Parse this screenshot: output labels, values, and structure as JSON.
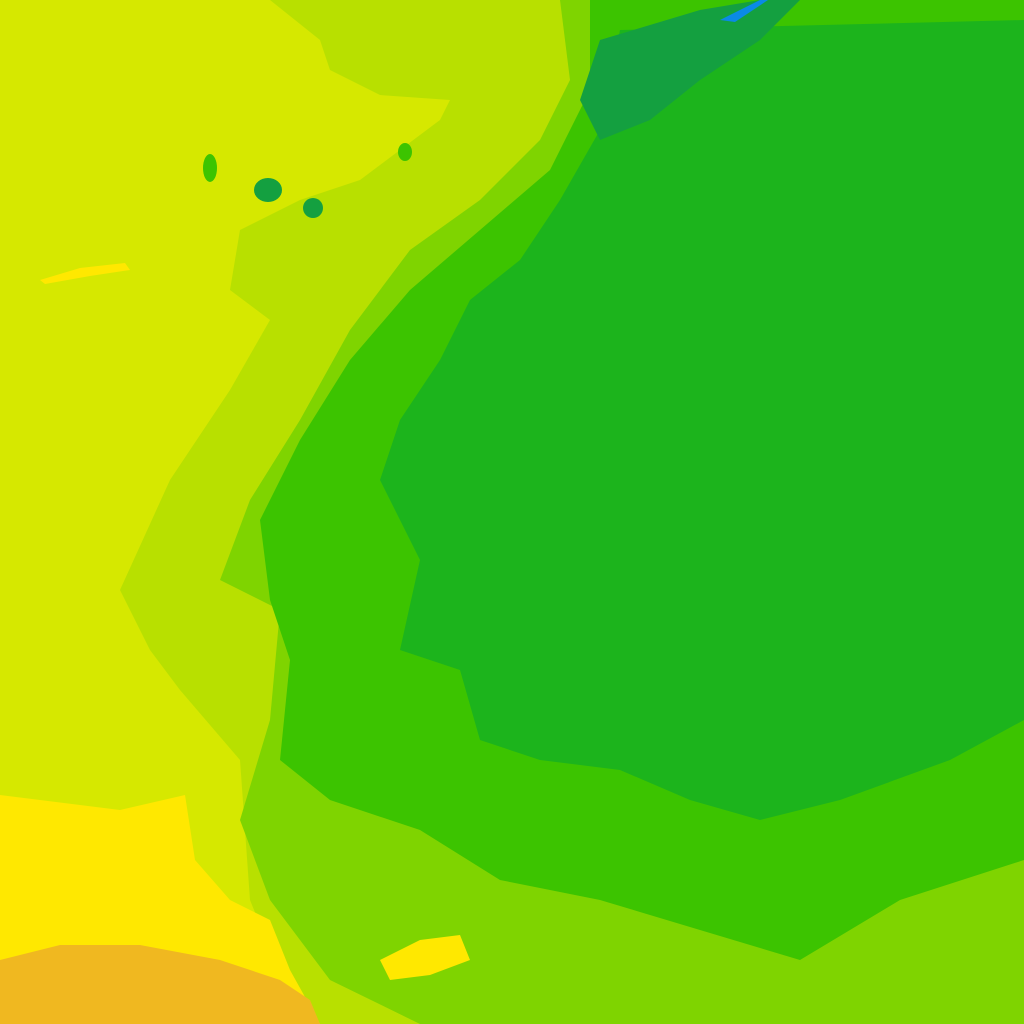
{
  "map": {
    "kind": "colored-field-raster-tile",
    "palette": {
      "yellow_green": "#d6e800",
      "light_green": "#b8e000",
      "mid_green": "#7fd400",
      "green": "#3cc400",
      "deep_green": "#1cb41c",
      "teal": "#14a040",
      "blue": "#0a8ae6",
      "yellow": "#ffe800",
      "orange": "#f0b820"
    }
  }
}
